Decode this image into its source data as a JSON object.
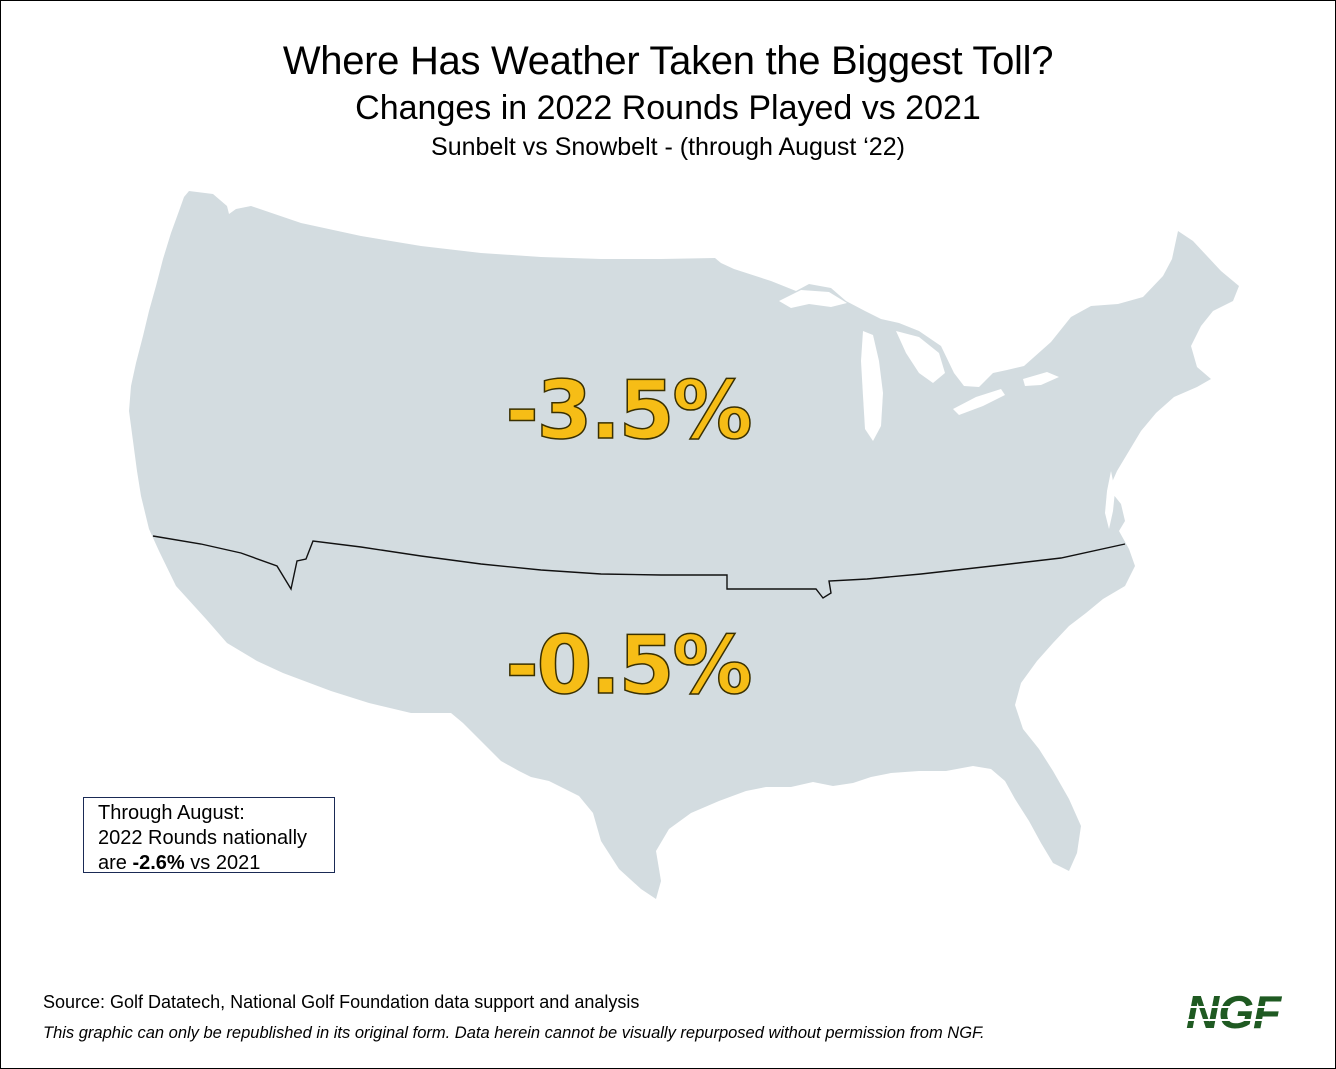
{
  "title": "Where Has Weather Taken the Biggest Toll?",
  "subtitle": "Changes in 2022 Rounds Played vs 2021",
  "subtitle2": "Sunbelt vs Snowbelt - (through August ‘22)",
  "regions": {
    "snowbelt": {
      "value": "-3.5%"
    },
    "sunbelt": {
      "value": "-0.5%"
    }
  },
  "note": {
    "line1": "Through August:",
    "line2": "2022 Rounds nationally",
    "line3_prefix": "are ",
    "line3_value": "-2.6%",
    "line3_suffix": " vs 2021"
  },
  "source": "Source: Golf Datatech, National Golf Foundation data support and analysis",
  "disclaimer": "This graphic can only be republished in its original form. Data herein cannot be visually repurposed without permission from NGF.",
  "logo": {
    "text": "NGF"
  },
  "colors": {
    "map_fill": "#d3dce0",
    "value_fill": "#F6BD16",
    "divider": "#111111",
    "logo": "#1f5a22",
    "note_border": "#1a2a55"
  }
}
